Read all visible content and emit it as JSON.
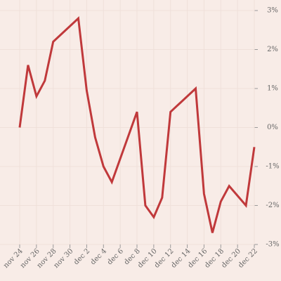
{
  "chart_data": {
    "type": "line",
    "x": [
      "nov 24",
      "nov 25",
      "nov 26",
      "nov 27",
      "nov 28",
      "dec 1",
      "dec 2",
      "dec 3",
      "dec 4",
      "dec 5",
      "dec 8",
      "dec 9",
      "dec 10",
      "dec 11",
      "dec 12",
      "dec 15",
      "dec 16",
      "dec 17",
      "dec 18",
      "dec 19",
      "dec 21",
      "dec 22"
    ],
    "series": [
      {
        "color": "#c0393b",
        "values": [
          0,
          1.6,
          0.8,
          1.2,
          2.2,
          2.8,
          0.95,
          -0.25,
          -1.0,
          -1.4,
          0.4,
          -2.0,
          -2.3,
          -1.8,
          0.4,
          1.0,
          -1.7,
          -2.7,
          -1.9,
          -1.5,
          -2.0,
          -0.5
        ]
      }
    ],
    "xlim": [
      "nov 24",
      "dec 22"
    ],
    "xticks": [
      "nov 24",
      "nov 26",
      "nov 28",
      "nov 30",
      "dec 2",
      "dec 4",
      "dec 6",
      "dec 8",
      "dec 10",
      "dec 12",
      "dec 14",
      "dec 16",
      "dec 18",
      "dec 20",
      "dec 22"
    ],
    "ylim": [
      -3,
      3
    ],
    "yticks": [
      {
        "value": -3,
        "label": "-3%"
      },
      {
        "value": -2,
        "label": "-2%"
      },
      {
        "value": -1,
        "label": "-1%"
      },
      {
        "value": 0,
        "label": "0%"
      },
      {
        "value": 1,
        "label": "1%"
      },
      {
        "value": 2,
        "label": "2%"
      },
      {
        "value": 3,
        "label": "3%"
      }
    ],
    "grid": true
  }
}
